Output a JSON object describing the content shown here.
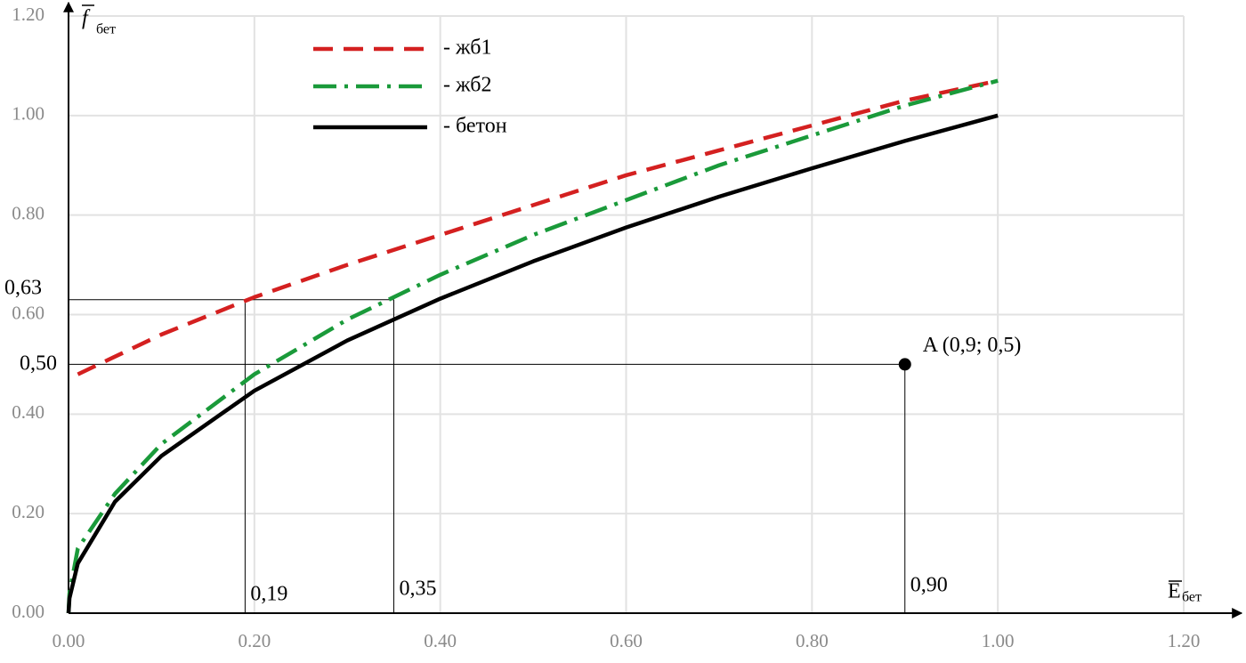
{
  "chart_data": {
    "type": "line",
    "x_label": {
      "main": "E",
      "sub": "бет"
    },
    "y_label": {
      "main": "f",
      "sub": "бет"
    },
    "xlim": [
      0,
      1.2
    ],
    "ylim": [
      0,
      1.2
    ],
    "xticks": [
      {
        "value": 0,
        "label": "0.00"
      },
      {
        "value": 0.2,
        "label": "0.20"
      },
      {
        "value": 0.4,
        "label": "0.40"
      },
      {
        "value": 0.6,
        "label": "0.60"
      },
      {
        "value": 0.8,
        "label": "0.80"
      },
      {
        "value": 1.0,
        "label": "1.00"
      },
      {
        "value": 1.2,
        "label": "1.20"
      }
    ],
    "yticks": [
      {
        "value": 0,
        "label": "0.00"
      },
      {
        "value": 0.2,
        "label": "0.20"
      },
      {
        "value": 0.4,
        "label": "0.40"
      },
      {
        "value": 0.6,
        "label": "0.60"
      },
      {
        "value": 0.8,
        "label": "0.80"
      },
      {
        "value": 1.0,
        "label": "1.00"
      },
      {
        "value": 1.2,
        "label": "1.20"
      }
    ],
    "grid": true,
    "series": [
      {
        "name": "- жб1",
        "color": "#d42020",
        "dash": "dashed",
        "x": [
          0.01,
          0.1,
          0.2,
          0.3,
          0.4,
          0.5,
          0.6,
          0.7,
          0.8,
          0.9,
          1.0
        ],
        "values": [
          0.48,
          0.56,
          0.635,
          0.7,
          0.76,
          0.82,
          0.88,
          0.93,
          0.98,
          1.03,
          1.07
        ]
      },
      {
        "name": "- жб2",
        "color": "#1a9a3a",
        "dash": "dashdot",
        "x": [
          0,
          0.001,
          0.01,
          0.05,
          0.1,
          0.2,
          0.3,
          0.4,
          0.5,
          0.6,
          0.7,
          0.8,
          0.9,
          1.0
        ],
        "values": [
          0,
          0.04,
          0.13,
          0.24,
          0.34,
          0.48,
          0.59,
          0.68,
          0.76,
          0.83,
          0.9,
          0.96,
          1.02,
          1.07
        ]
      },
      {
        "name": "- бетон",
        "color": "#000000",
        "dash": "solid",
        "x": [
          0,
          0.001,
          0.01,
          0.05,
          0.1,
          0.2,
          0.3,
          0.4,
          0.5,
          0.6,
          0.7,
          0.8,
          0.9,
          1.0
        ],
        "values": [
          0,
          0.03,
          0.1,
          0.224,
          0.316,
          0.447,
          0.548,
          0.632,
          0.707,
          0.775,
          0.837,
          0.894,
          0.949,
          1.0
        ]
      }
    ],
    "guides": [
      {
        "x": 0.19,
        "y": 0.63,
        "x_label": "0,19",
        "y_label": "0,63"
      },
      {
        "x": 0.35,
        "y": 0.63,
        "x_label": "0,35"
      },
      {
        "x": 0.9,
        "y": 0.5,
        "x_label": "0,90",
        "y_label": "0,50"
      }
    ],
    "point": {
      "x": 0.9,
      "y": 0.5,
      "label": "A (0,9; 0,5)"
    }
  }
}
